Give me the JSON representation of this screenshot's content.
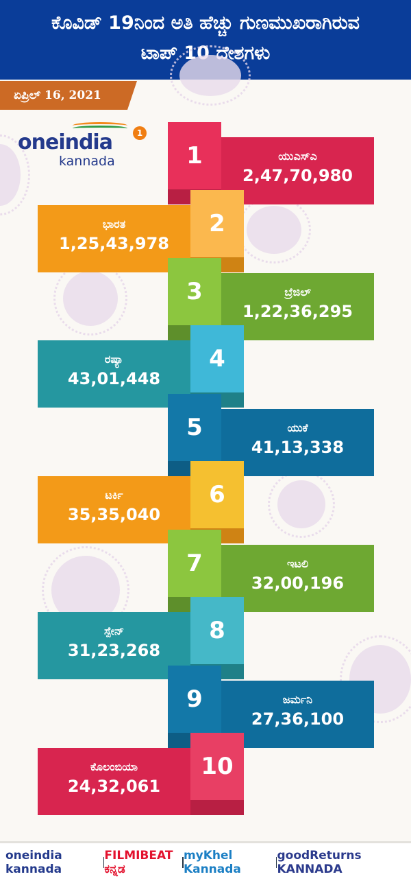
{
  "header": {
    "title_line1": "ಕೊವಿಡ್ 19ನಿಂದ ಅತಿ ಹೆಚ್ಚು ಗುಣಮುಖರಾಗಿರುವ",
    "title_line2": "ಟಾಪ್ 10 ದೇಶಗಳು"
  },
  "date": "ಏಪ್ರಿಲ್ 16, 2021",
  "logo": {
    "text": "oneindia",
    "sub": "kannada",
    "badge": "1"
  },
  "rows": [
    {
      "rank": "1",
      "country": "ಯುಎಸ್ಎ",
      "value": "2,47,70,980",
      "label_color": "#d8254f",
      "square_color": "#e8305a"
    },
    {
      "rank": "2",
      "country": "ಭಾರತ",
      "value": "1,25,43,978",
      "label_color": "#f39a18",
      "square_color": "#fbb84e"
    },
    {
      "rank": "3",
      "country": "ಬ್ರೆಜಿಲ್",
      "value": "1,22,36,295",
      "label_color": "#6ea832",
      "square_color": "#8cc63f"
    },
    {
      "rank": "4",
      "country": "ರಷ್ಯಾ",
      "value": "43,01,448",
      "label_color": "#2597a0",
      "square_color": "#3fb8d8"
    },
    {
      "rank": "5",
      "country": "ಯುಕೆ",
      "value": "41,13,338",
      "label_color": "#0f6d9c",
      "square_color": "#1378a8"
    },
    {
      "rank": "6",
      "country": "ಟರ್ಕಿ",
      "value": "35,35,040",
      "label_color": "#f39a18",
      "square_color": "#f5c030"
    },
    {
      "rank": "7",
      "country": "ಇಟಲಿ",
      "value": "32,00,196",
      "label_color": "#6ea832",
      "square_color": "#8cc63f"
    },
    {
      "rank": "8",
      "country": "ಸ್ಪೇನ್",
      "value": "31,23,268",
      "label_color": "#2597a0",
      "square_color": "#45b8c8"
    },
    {
      "rank": "9",
      "country": "ಜರ್ಮನಿ",
      "value": "27,36,100",
      "label_color": "#0f6d9c",
      "square_color": "#1378a8"
    },
    {
      "rank": "10",
      "country": "ಕೊಲಂಬಿಯಾ",
      "value": "24,32,061",
      "label_color": "#d8254f",
      "square_color": "#e83f64"
    }
  ],
  "footer": {
    "brands": [
      "oneindia kannada",
      "FILMIBEAT ಕನ್ನಡ",
      "myKhel Kannada",
      "goodReturns KANNADA"
    ]
  }
}
